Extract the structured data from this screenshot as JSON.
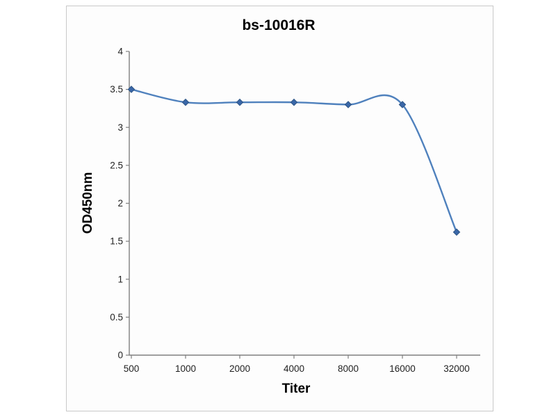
{
  "figure": {
    "background": "#ffffff",
    "frame_border_color": "#c9c9c9"
  },
  "chart_data": {
    "type": "line",
    "title": "bs-10016R",
    "xlabel": "Titer",
    "ylabel": "OD450nm",
    "categories": [
      "500",
      "1000",
      "2000",
      "4000",
      "8000",
      "16000",
      "32000"
    ],
    "series": [
      {
        "name": "bs-10016R",
        "values": [
          3.5,
          3.33,
          3.33,
          3.33,
          3.3,
          3.3,
          1.62
        ],
        "color": "#4f81bd",
        "marker": "diamond",
        "marker_fill": "#3a67a8",
        "marker_stroke": "#2e5585",
        "smooth": true
      }
    ],
    "ylim": [
      0,
      4
    ],
    "yticks": [
      0,
      0.5,
      1,
      1.5,
      2,
      2.5,
      3,
      3.5,
      4
    ],
    "ytick_labels": [
      "0",
      "0.5",
      "1",
      "1.5",
      "2",
      "2.5",
      "3",
      "3.5",
      "4"
    ],
    "axis_color": "#7f7f7f",
    "grid": false,
    "legend": "none"
  }
}
